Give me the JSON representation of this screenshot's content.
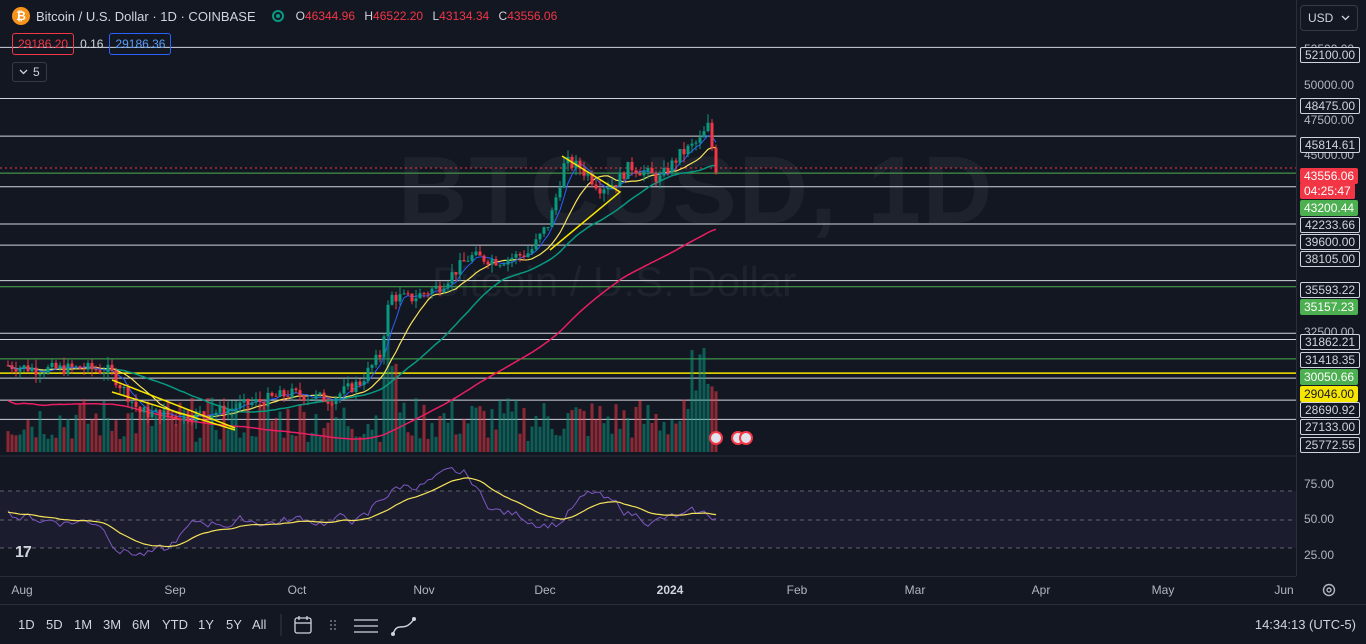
{
  "header": {
    "symbol_initial": "₿",
    "title": "Bitcoin / U.S. Dollar · 1D · COINBASE",
    "ohlc": {
      "o_label": "O",
      "o": "46344.96",
      "h_label": "H",
      "h": "46522.20",
      "l_label": "L",
      "l": "43134.34",
      "c_label": "C",
      "c": "43556.06"
    },
    "sell_price": "29186.20",
    "spread": "0.16",
    "buy_price": "29186.36",
    "indicators_count": "5",
    "currency": "USD"
  },
  "watermark": {
    "symbol": "BTCUSD, 1D",
    "name": "Bitcoin / U.S. Dollar"
  },
  "price_axis": {
    "ticks": [
      "52500.00",
      "50000.00",
      "47500.00",
      "45000.00",
      "32500.00"
    ],
    "level_labels": [
      "52100.00",
      "48475.00",
      "45814.61",
      "42233.66",
      "39600.00",
      "38105.00",
      "35593.22",
      "31862.21",
      "31418.35",
      "28690.92",
      "27133.00",
      "25772.55"
    ],
    "last_price": "43556.06",
    "countdown": "04:25:47",
    "green_labels": [
      "43200.44",
      "35157.23",
      "30050.66"
    ],
    "yellow_label": "29046.00"
  },
  "rsi_axis": {
    "ticks": [
      "75.00",
      "50.00",
      "25.00"
    ]
  },
  "time_axis": {
    "labels": [
      "Aug",
      "Sep",
      "Oct",
      "Nov",
      "Dec",
      "2024",
      "Feb",
      "Mar",
      "Apr",
      "May",
      "Jun"
    ]
  },
  "toolbar": {
    "timeframes": [
      "1D",
      "5D",
      "1M",
      "3M",
      "6M",
      "YTD",
      "1Y",
      "5Y",
      "All"
    ],
    "clock": "14:34:13 (UTC-5)"
  },
  "logo_text": "17",
  "colors": {
    "up": "#089981",
    "down": "#f23645",
    "ma_fast": "#2962ff",
    "ma_slow": "#f7e35a",
    "ma_mid": "#089981",
    "ma_long": "#e91e63",
    "rsi": "#7e57c2",
    "rsi_ma": "#f7e35a"
  },
  "chart_data": {
    "type": "candlestick",
    "last_close": 43556.06,
    "horizontal_levels": [
      52100.0,
      48475.0,
      45814.61,
      43200.44,
      42233.66,
      39600.0,
      38105.0,
      35593.22,
      35157.23,
      31862.21,
      31418.35,
      30050.66,
      29046.0,
      28690.92,
      27133.0,
      25772.55
    ],
    "rsi_levels": [
      30,
      50,
      70
    ]
  }
}
